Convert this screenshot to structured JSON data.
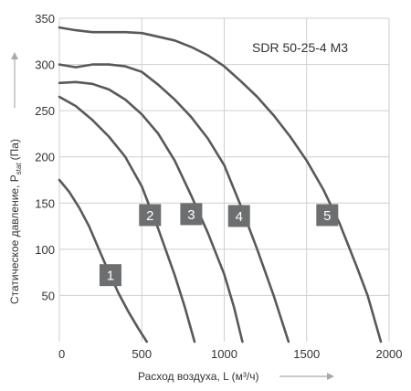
{
  "chart_data": {
    "type": "line",
    "title": "SDR 50-25-4 M3",
    "xlabel": "Расход воздуха, L (м³/ч)",
    "ylabel": "Статическое давление, P",
    "ylabel_sub": "stat",
    "ylabel_unit": "(Па)",
    "xlim": [
      0,
      2000
    ],
    "ylim": [
      0,
      350
    ],
    "xticks": [
      0,
      500,
      1000,
      1500,
      2000
    ],
    "yticks": [
      50,
      100,
      150,
      200,
      250,
      300,
      350
    ],
    "grid": true,
    "series": [
      {
        "name": "1",
        "label_at": [
          310,
          72
        ],
        "x": [
          0,
          60,
          120,
          180,
          240,
          300,
          360,
          420,
          480,
          530
        ],
        "y": [
          175,
          162,
          145,
          125,
          100,
          75,
          52,
          32,
          14,
          0
        ]
      },
      {
        "name": "2",
        "label_at": [
          550,
          137
        ],
        "x": [
          0,
          100,
          200,
          300,
          400,
          500,
          600,
          700,
          760,
          820
        ],
        "y": [
          265,
          255,
          240,
          222,
          200,
          168,
          122,
          72,
          38,
          0
        ]
      },
      {
        "name": "3",
        "label_at": [
          800,
          138
        ],
        "x": [
          0,
          100,
          200,
          300,
          400,
          500,
          600,
          700,
          800,
          900,
          1000,
          1060,
          1110
        ],
        "y": [
          280,
          281,
          279,
          273,
          262,
          246,
          225,
          196,
          158,
          118,
          73,
          37,
          0
        ]
      },
      {
        "name": "4",
        "label_at": [
          1090,
          136
        ],
        "x": [
          0,
          100,
          200,
          300,
          400,
          500,
          600,
          700,
          800,
          900,
          1000,
          1100,
          1200,
          1300,
          1390
        ],
        "y": [
          300,
          297,
          300,
          300,
          298,
          292,
          278,
          262,
          243,
          220,
          191,
          147,
          100,
          50,
          0
        ]
      },
      {
        "name": "5",
        "label_at": [
          1625,
          137
        ],
        "x": [
          0,
          100,
          200,
          300,
          400,
          500,
          600,
          700,
          800,
          900,
          1000,
          1100,
          1200,
          1300,
          1400,
          1500,
          1600,
          1700,
          1800,
          1870,
          1950
        ],
        "y": [
          340,
          337,
          335,
          335,
          335,
          334,
          330,
          326,
          319,
          310,
          298,
          282,
          265,
          245,
          222,
          196,
          165,
          128,
          83,
          50,
          0
        ]
      }
    ]
  }
}
